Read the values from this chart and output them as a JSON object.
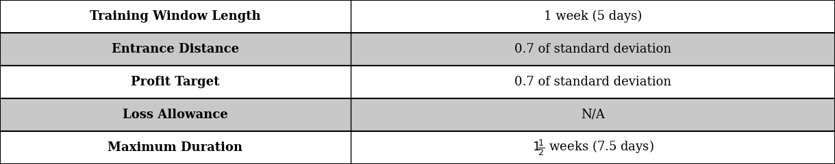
{
  "rows": [
    {
      "label": "Training Window Length",
      "value": "1 week (5 days)",
      "bg": "#ffffff"
    },
    {
      "label": "Entrance Distance",
      "value": "0.7 of standard deviation",
      "bg": "#c8c8c8"
    },
    {
      "label": "Profit Target",
      "value": "0.7 of standard deviation",
      "bg": "#ffffff"
    },
    {
      "label": "Loss Allowance",
      "value": "N/A",
      "bg": "#c8c8c8"
    },
    {
      "label": "Maximum Duration",
      "value_special": true,
      "bg": "#ffffff"
    }
  ],
  "col_split": 0.42,
  "border_color": "#000000",
  "text_color": "#000000",
  "label_fontsize": 13,
  "value_fontsize": 13,
  "fig_width": 12.19,
  "fig_height": 2.4,
  "dpi": 100
}
